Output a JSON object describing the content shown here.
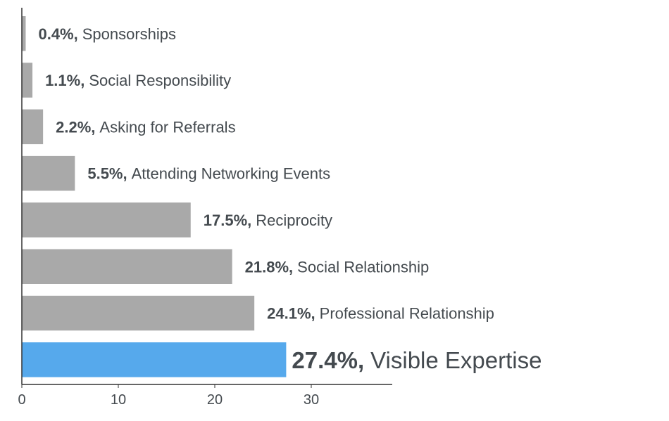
{
  "chart_data": {
    "type": "bar",
    "orientation": "horizontal",
    "categories": [
      "Sponsorships",
      "Social Responsibility",
      "Asking for Referrals",
      "Attending Networking Events",
      "Reciprocity",
      "Social Relationship",
      "Professional Relationship",
      "Visible Expertise"
    ],
    "values": [
      0.4,
      1.1,
      2.2,
      5.5,
      17.5,
      21.8,
      24.1,
      27.4
    ],
    "value_labels": [
      "0.4%,",
      "1.1%,",
      "2.2%,",
      "5.5%,",
      "17.5%,",
      "21.8%,",
      "24.1%,",
      "27.4%,"
    ],
    "highlight_index": 7,
    "xlim": [
      0,
      38.5
    ],
    "xticks": [
      0,
      10,
      20,
      30
    ],
    "xtick_labels": [
      "0",
      "10",
      "20",
      "30"
    ],
    "title": "",
    "xlabel": "",
    "ylabel": "",
    "grid": false,
    "colors": {
      "bar": "#a9a9a9",
      "highlight": "#56a9ec",
      "label_text": "#444a4f",
      "axis": "#333333"
    }
  }
}
